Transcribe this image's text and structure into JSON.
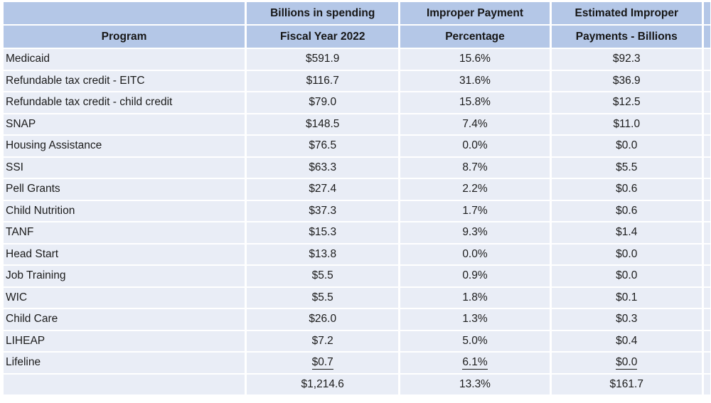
{
  "table": {
    "header_row1": [
      "",
      "Billions in spending",
      "Improper Payment",
      "Estimated Improper"
    ],
    "header_row2": [
      "Program",
      "Fiscal Year 2022",
      "Percentage",
      "Payments - Billions"
    ],
    "rows": [
      {
        "program": "Medicaid",
        "spending": "$591.9",
        "percentage": "15.6%",
        "improper": "$92.3",
        "underline": false
      },
      {
        "program": "Refundable tax credit - EITC",
        "spending": "$116.7",
        "percentage": "31.6%",
        "improper": "$36.9",
        "underline": false
      },
      {
        "program": "Refundable tax credit - child credit",
        "spending": "$79.0",
        "percentage": "15.8%",
        "improper": "$12.5",
        "underline": false
      },
      {
        "program": "SNAP",
        "spending": "$148.5",
        "percentage": "7.4%",
        "improper": "$11.0",
        "underline": false
      },
      {
        "program": "Housing Assistance",
        "spending": "$76.5",
        "percentage": "0.0%",
        "improper": "$0.0",
        "underline": false
      },
      {
        "program": "SSI",
        "spending": "$63.3",
        "percentage": "8.7%",
        "improper": "$5.5",
        "underline": false
      },
      {
        "program": "Pell Grants",
        "spending": "$27.4",
        "percentage": "2.2%",
        "improper": "$0.6",
        "underline": false
      },
      {
        "program": "Child Nutrition",
        "spending": "$37.3",
        "percentage": "1.7%",
        "improper": "$0.6",
        "underline": false
      },
      {
        "program": "TANF",
        "spending": "$15.3",
        "percentage": "9.3%",
        "improper": "$1.4",
        "underline": false
      },
      {
        "program": "Head Start",
        "spending": "$13.8",
        "percentage": "0.0%",
        "improper": "$0.0",
        "underline": false
      },
      {
        "program": "Job Training",
        "spending": "$5.5",
        "percentage": "0.9%",
        "improper": "$0.0",
        "underline": false
      },
      {
        "program": "WIC",
        "spending": "$5.5",
        "percentage": "1.8%",
        "improper": "$0.1",
        "underline": false
      },
      {
        "program": "Child Care",
        "spending": "$26.0",
        "percentage": "1.3%",
        "improper": "$0.3",
        "underline": false
      },
      {
        "program": "LIHEAP",
        "spending": "$7.2",
        "percentage": "5.0%",
        "improper": "$0.4",
        "underline": false
      },
      {
        "program": "Lifeline",
        "spending": "$0.7",
        "percentage": "6.1%",
        "improper": "$0.0",
        "underline": true
      }
    ],
    "total_row": {
      "program": "",
      "spending": "$1,214.6",
      "percentage": "13.3%",
      "improper": "$161.7"
    }
  },
  "colors": {
    "header_bg": "#b4c7e7",
    "row_bg": "#e9edf6",
    "text": "#1b1b1b",
    "page_bg": "#ffffff"
  }
}
